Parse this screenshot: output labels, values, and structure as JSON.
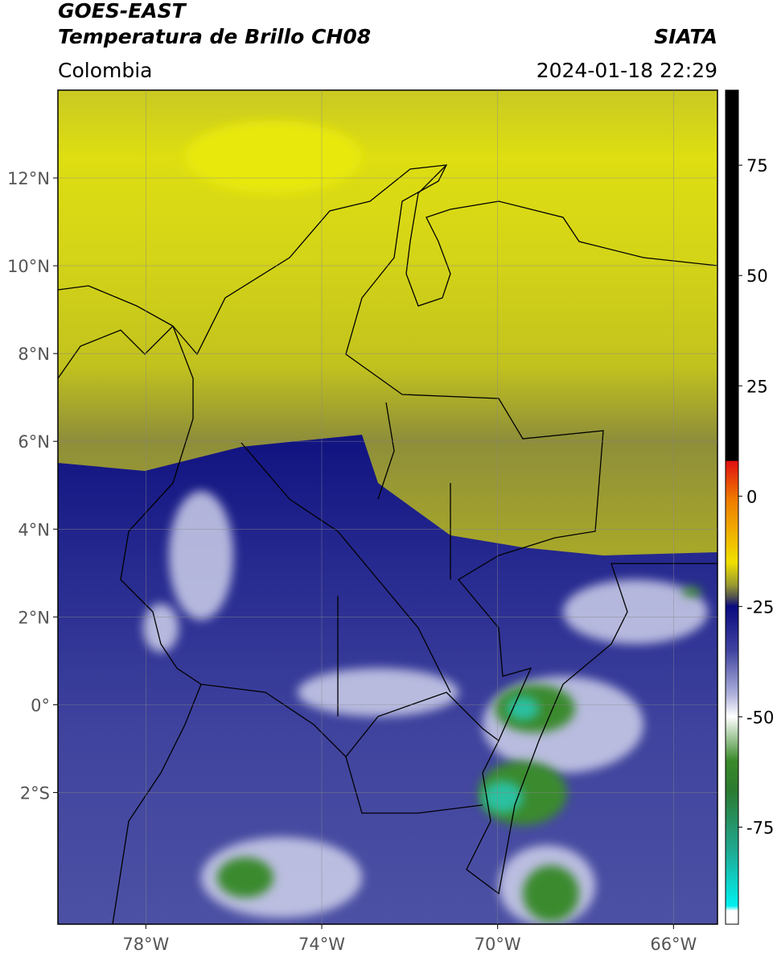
{
  "header": {
    "title": "GOES-EAST",
    "subtitle": "Temperatura de Brillo CH08",
    "source": "SIATA",
    "region": "Colombia",
    "datetime": "2024-01-18 22:29"
  },
  "map": {
    "xlim": [
      -80,
      -65
    ],
    "ylim": [
      -5,
      14
    ],
    "xticks": [
      {
        "value": -78,
        "label": "78°W"
      },
      {
        "value": -74,
        "label": "74°W"
      },
      {
        "value": -70,
        "label": "70°W"
      },
      {
        "value": -66,
        "label": "66°W"
      }
    ],
    "yticks": [
      {
        "value": 12,
        "label": "12°N"
      },
      {
        "value": 10,
        "label": "10°N"
      },
      {
        "value": 8,
        "label": "8°N"
      },
      {
        "value": 6,
        "label": "6°N"
      },
      {
        "value": 4,
        "label": "4°N"
      },
      {
        "value": 2,
        "label": "2°N"
      },
      {
        "value": 0,
        "label": "0°"
      },
      {
        "value": -2,
        "label": "2°S"
      }
    ],
    "grid": true
  },
  "colorbar": {
    "lim": [
      -97,
      92
    ],
    "ticks": [
      75,
      50,
      25,
      0,
      -25,
      -50,
      -75
    ]
  }
}
